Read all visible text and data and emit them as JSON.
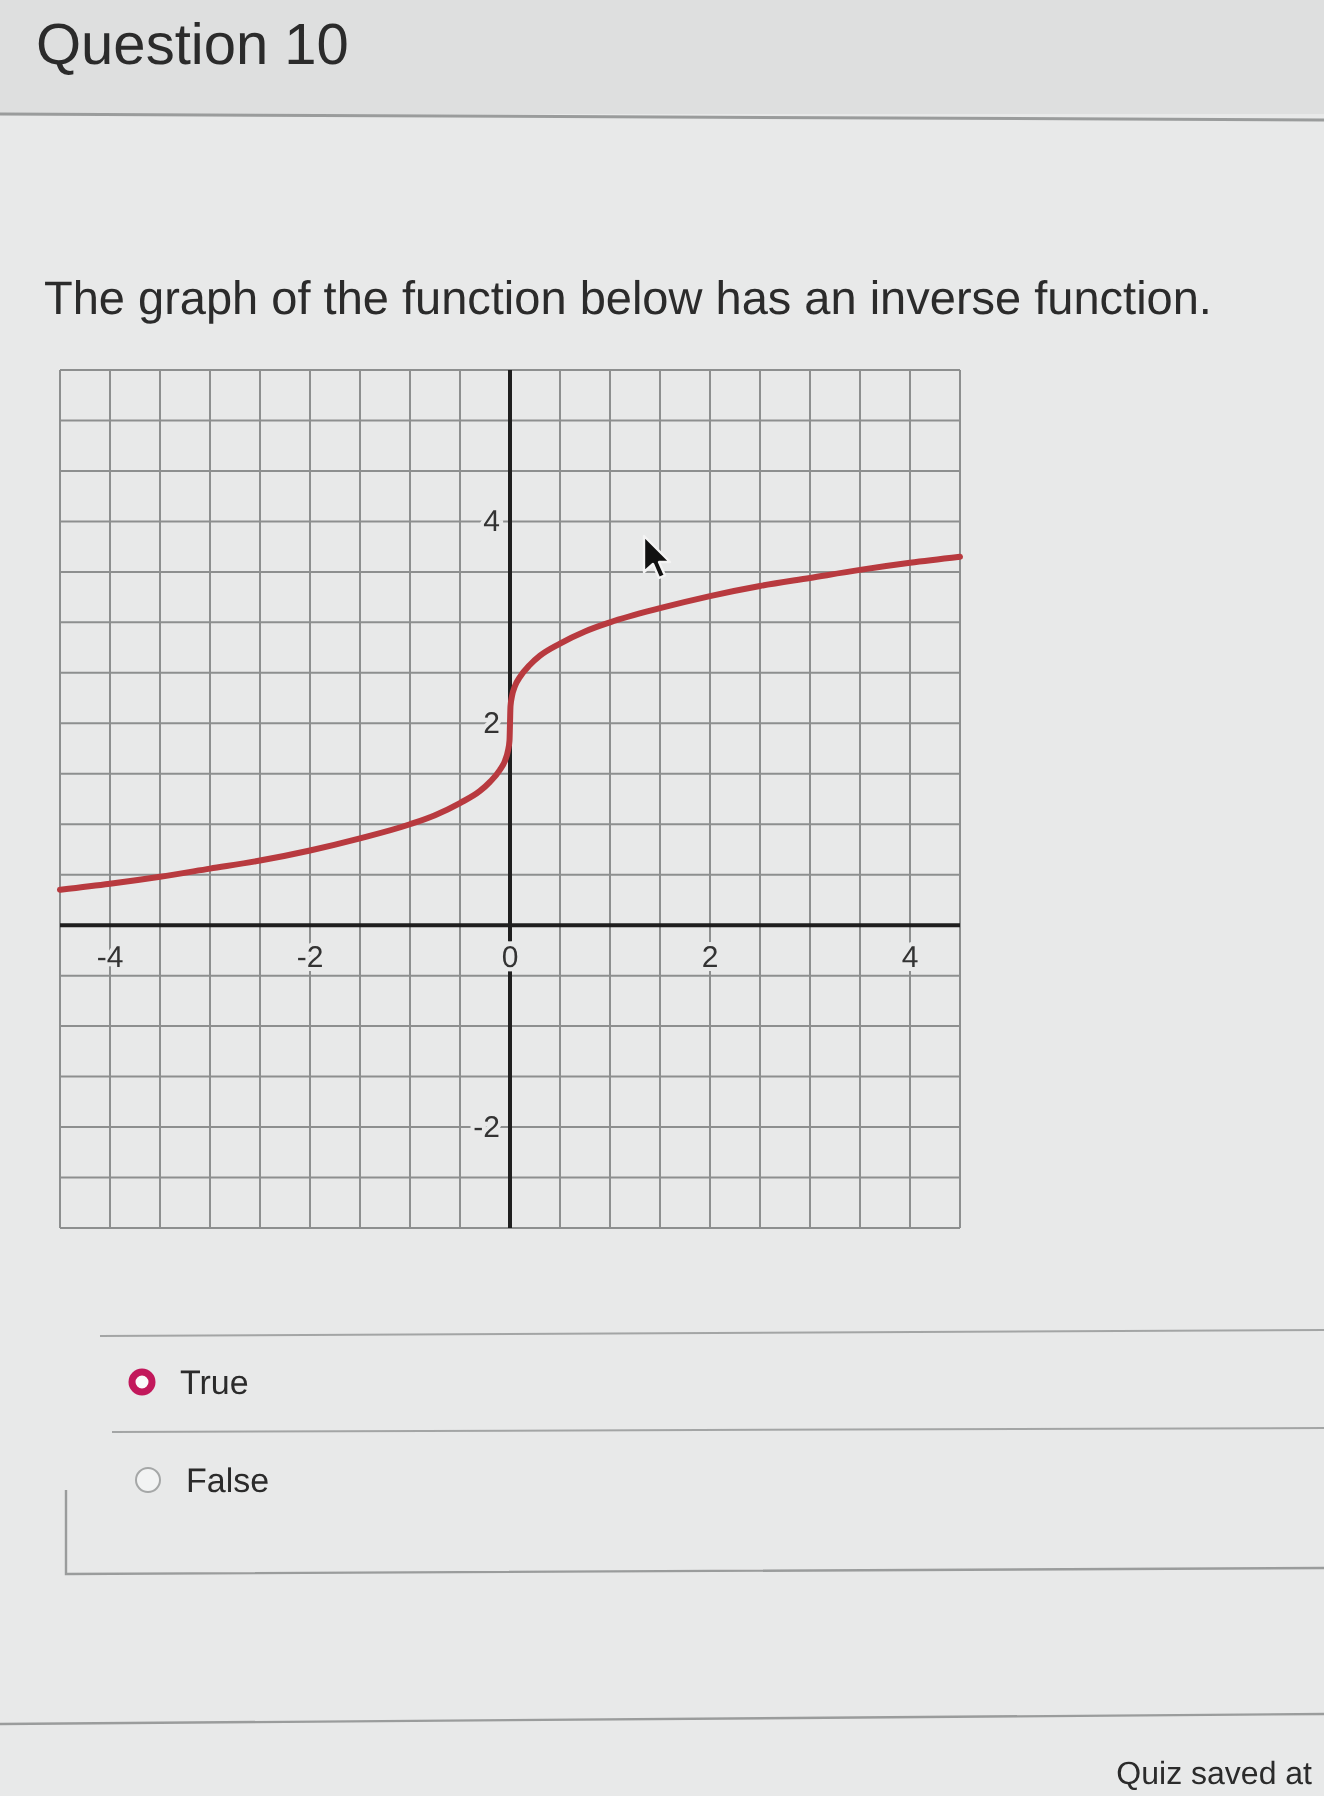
{
  "chart_data": {
    "type": "line",
    "title": "Question 10",
    "subtitle": "The graph of the function below has an inverse function.",
    "x": [
      -4.5,
      -4,
      -3.5,
      -3,
      -2.5,
      -2,
      -1.5,
      -1,
      -0.75,
      -0.5,
      -0.3,
      -0.2,
      -0.1,
      -0.05,
      -0.02,
      -0.005,
      0,
      0.005,
      0.02,
      0.05,
      0.1,
      0.2,
      0.3,
      0.5,
      0.75,
      1,
      1.5,
      2,
      2.5,
      3,
      3.5,
      4,
      4.5
    ],
    "series": [
      {
        "color": "#b83a3f",
        "values": [
          0.35,
          0.41,
          0.48,
          0.56,
          0.64,
          0.74,
          0.86,
          1.0,
          1.09,
          1.21,
          1.33,
          1.42,
          1.54,
          1.63,
          1.73,
          1.83,
          2.0,
          2.17,
          2.27,
          2.37,
          2.46,
          2.58,
          2.67,
          2.79,
          2.91,
          3.0,
          3.14,
          3.26,
          3.36,
          3.44,
          3.52,
          3.59,
          3.65
        ]
      }
    ],
    "xlim": [
      -4.5,
      4.5
    ],
    "ylim": [
      -3,
      5.5
    ],
    "xticks": [
      {
        "value": -4.5,
        "label": null
      },
      -4,
      {
        "value": -3.5,
        "label": null
      },
      {
        "value": -3,
        "label": null
      },
      {
        "value": -2.5,
        "label": null
      },
      -2,
      {
        "value": -1.5,
        "label": null
      },
      {
        "value": -1,
        "label": null
      },
      {
        "value": -0.5,
        "label": null
      },
      0,
      {
        "value": 0.5,
        "label": null
      },
      {
        "value": 1,
        "label": null
      },
      {
        "value": 1.5,
        "label": null
      },
      2,
      {
        "value": 2.5,
        "label": null
      },
      {
        "value": 3,
        "label": null
      },
      {
        "value": 3.5,
        "label": null
      },
      4,
      {
        "value": 4.5,
        "label": null
      }
    ],
    "yticks": [
      {
        "value": -3,
        "label": null
      },
      {
        "value": -2.5,
        "label": null
      },
      -2,
      {
        "value": -1.5,
        "label": null
      },
      {
        "value": -1,
        "label": null
      },
      {
        "value": -0.5,
        "label": null
      },
      {
        "value": 0,
        "label": null
      },
      {
        "value": 0.5,
        "label": null
      },
      {
        "value": 1,
        "label": null
      },
      {
        "value": 1.5,
        "label": null
      },
      2,
      {
        "value": 2.5,
        "label": null
      },
      {
        "value": 3,
        "label": null
      },
      {
        "value": 3.5,
        "label": null
      },
      4,
      {
        "value": 4.5,
        "label": null
      },
      {
        "value": 5,
        "label": null
      },
      {
        "value": 5.5,
        "label": null
      }
    ],
    "grid": true,
    "annotations": [
      "True",
      "False",
      "Quiz saved at"
    ]
  }
}
